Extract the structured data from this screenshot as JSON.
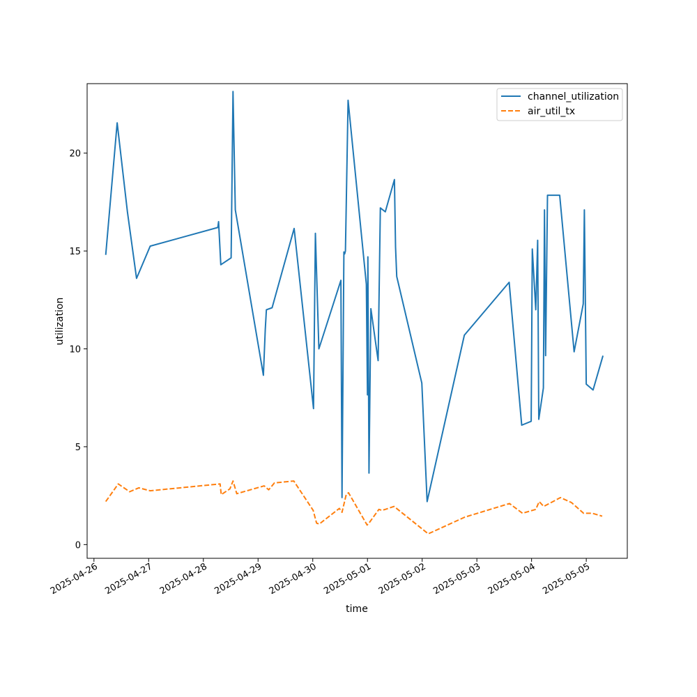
{
  "chart_data": {
    "type": "line",
    "title": "",
    "xlabel": "time",
    "ylabel": "utilization",
    "x_axis": {
      "kind": "date",
      "range": [
        "2025-04-25T21:00",
        "2025-05-05T18:00"
      ],
      "ticks": [
        "2025-04-26",
        "2025-04-27",
        "2025-04-28",
        "2025-04-29",
        "2025-04-30",
        "2025-05-01",
        "2025-05-02",
        "2025-05-03",
        "2025-05-04",
        "2025-05-05"
      ]
    },
    "y_axis": {
      "range": [
        -0.7,
        23.55
      ],
      "ticks": [
        0,
        5,
        10,
        15,
        20
      ]
    },
    "grid": false,
    "legend": {
      "position": "top-right"
    },
    "series": [
      {
        "name": "channel_utilization",
        "color": "#1f77b4",
        "dash": "solid",
        "points": [
          [
            "2025-04-26T05:10",
            14.8
          ],
          [
            "2025-04-26T10:10",
            21.55
          ],
          [
            "2025-04-26T14:40",
            17.0
          ],
          [
            "2025-04-26T18:40",
            13.6
          ],
          [
            "2025-04-27T00:40",
            15.25
          ],
          [
            "2025-04-28T06:20",
            16.2
          ],
          [
            "2025-04-28T06:40",
            16.5
          ],
          [
            "2025-04-28T07:40",
            14.3
          ],
          [
            "2025-04-28T12:10",
            14.65
          ],
          [
            "2025-04-28T13:00",
            23.15
          ],
          [
            "2025-04-28T14:00",
            17.1
          ],
          [
            "2025-04-29T02:20",
            8.65
          ],
          [
            "2025-04-29T03:10",
            11.0
          ],
          [
            "2025-04-29T03:40",
            12.0
          ],
          [
            "2025-04-29T06:10",
            12.1
          ],
          [
            "2025-04-29T15:50",
            16.15
          ],
          [
            "2025-04-30T00:20",
            6.95
          ],
          [
            "2025-04-30T01:10",
            15.9
          ],
          [
            "2025-04-30T02:40",
            10.0
          ],
          [
            "2025-04-30T12:20",
            13.5
          ],
          [
            "2025-04-30T12:50",
            2.4
          ],
          [
            "2025-04-30T13:40",
            14.95
          ],
          [
            "2025-04-30T14:00",
            14.85
          ],
          [
            "2025-04-30T14:20",
            15.0
          ],
          [
            "2025-04-30T15:30",
            22.7
          ],
          [
            "2025-04-30T23:30",
            13.3
          ],
          [
            "2025-05-01T00:00",
            7.65
          ],
          [
            "2025-05-01T00:10",
            14.7
          ],
          [
            "2025-05-01T00:40",
            3.65
          ],
          [
            "2025-05-01T01:30",
            12.05
          ],
          [
            "2025-05-01T04:40",
            9.4
          ],
          [
            "2025-05-01T05:40",
            17.2
          ],
          [
            "2025-05-01T07:50",
            17.0
          ],
          [
            "2025-05-01T11:50",
            18.65
          ],
          [
            "2025-05-01T12:20",
            15.2
          ],
          [
            "2025-05-01T12:50",
            13.7
          ],
          [
            "2025-05-01T23:50",
            8.25
          ],
          [
            "2025-05-02T02:10",
            2.2
          ],
          [
            "2025-05-02T18:30",
            10.7
          ],
          [
            "2025-05-03T14:10",
            13.4
          ],
          [
            "2025-05-03T19:40",
            6.1
          ],
          [
            "2025-05-03T23:50",
            6.3
          ],
          [
            "2025-05-04T00:20",
            15.1
          ],
          [
            "2025-05-04T01:50",
            12.0
          ],
          [
            "2025-05-04T02:40",
            15.55
          ],
          [
            "2025-05-04T03:10",
            6.4
          ],
          [
            "2025-05-04T05:10",
            8.0
          ],
          [
            "2025-05-04T05:40",
            17.1
          ],
          [
            "2025-05-04T06:10",
            9.65
          ],
          [
            "2025-05-04T07:00",
            17.85
          ],
          [
            "2025-05-04T12:20",
            17.85
          ],
          [
            "2025-05-04T18:40",
            9.85
          ],
          [
            "2025-05-04T22:40",
            12.3
          ],
          [
            "2025-05-04T23:10",
            17.1
          ],
          [
            "2025-05-05T00:00",
            8.2
          ],
          [
            "2025-05-05T03:00",
            7.9
          ],
          [
            "2025-05-05T07:20",
            9.65
          ]
        ]
      },
      {
        "name": "air_util_tx",
        "color": "#ff7f0e",
        "dash": "dashed",
        "points": [
          [
            "2025-04-26T05:10",
            2.2
          ],
          [
            "2025-04-26T10:40",
            3.1
          ],
          [
            "2025-04-26T15:40",
            2.7
          ],
          [
            "2025-04-26T19:40",
            2.9
          ],
          [
            "2025-04-27T00:40",
            2.75
          ],
          [
            "2025-04-28T07:20",
            3.1
          ],
          [
            "2025-04-28T07:50",
            2.55
          ],
          [
            "2025-04-28T11:40",
            2.85
          ],
          [
            "2025-04-28T13:00",
            3.25
          ],
          [
            "2025-04-28T14:40",
            2.6
          ],
          [
            "2025-04-29T02:40",
            3.0
          ],
          [
            "2025-04-29T04:40",
            2.8
          ],
          [
            "2025-04-29T07:10",
            3.15
          ],
          [
            "2025-04-29T15:40",
            3.25
          ],
          [
            "2025-04-30T00:10",
            1.75
          ],
          [
            "2025-04-30T01:40",
            1.1
          ],
          [
            "2025-04-30T02:50",
            1.05
          ],
          [
            "2025-04-30T11:40",
            1.85
          ],
          [
            "2025-04-30T12:50",
            1.65
          ],
          [
            "2025-04-30T14:40",
            2.55
          ],
          [
            "2025-04-30T15:40",
            2.65
          ],
          [
            "2025-04-30T23:50",
            1.0
          ],
          [
            "2025-05-01T00:40",
            1.1
          ],
          [
            "2025-05-01T05:00",
            1.8
          ],
          [
            "2025-05-01T06:20",
            1.75
          ],
          [
            "2025-05-01T07:50",
            1.8
          ],
          [
            "2025-05-01T11:40",
            1.95
          ],
          [
            "2025-05-02T02:40",
            0.55
          ],
          [
            "2025-05-02T18:40",
            1.4
          ],
          [
            "2025-05-03T14:20",
            2.1
          ],
          [
            "2025-05-03T20:00",
            1.6
          ],
          [
            "2025-05-04T01:50",
            1.8
          ],
          [
            "2025-05-04T03:20",
            2.2
          ],
          [
            "2025-05-04T05:20",
            1.95
          ],
          [
            "2025-05-04T12:40",
            2.4
          ],
          [
            "2025-05-04T17:30",
            2.15
          ],
          [
            "2025-05-04T22:50",
            1.6
          ],
          [
            "2025-05-05T02:40",
            1.6
          ],
          [
            "2025-05-05T07:00",
            1.45
          ]
        ]
      }
    ]
  }
}
